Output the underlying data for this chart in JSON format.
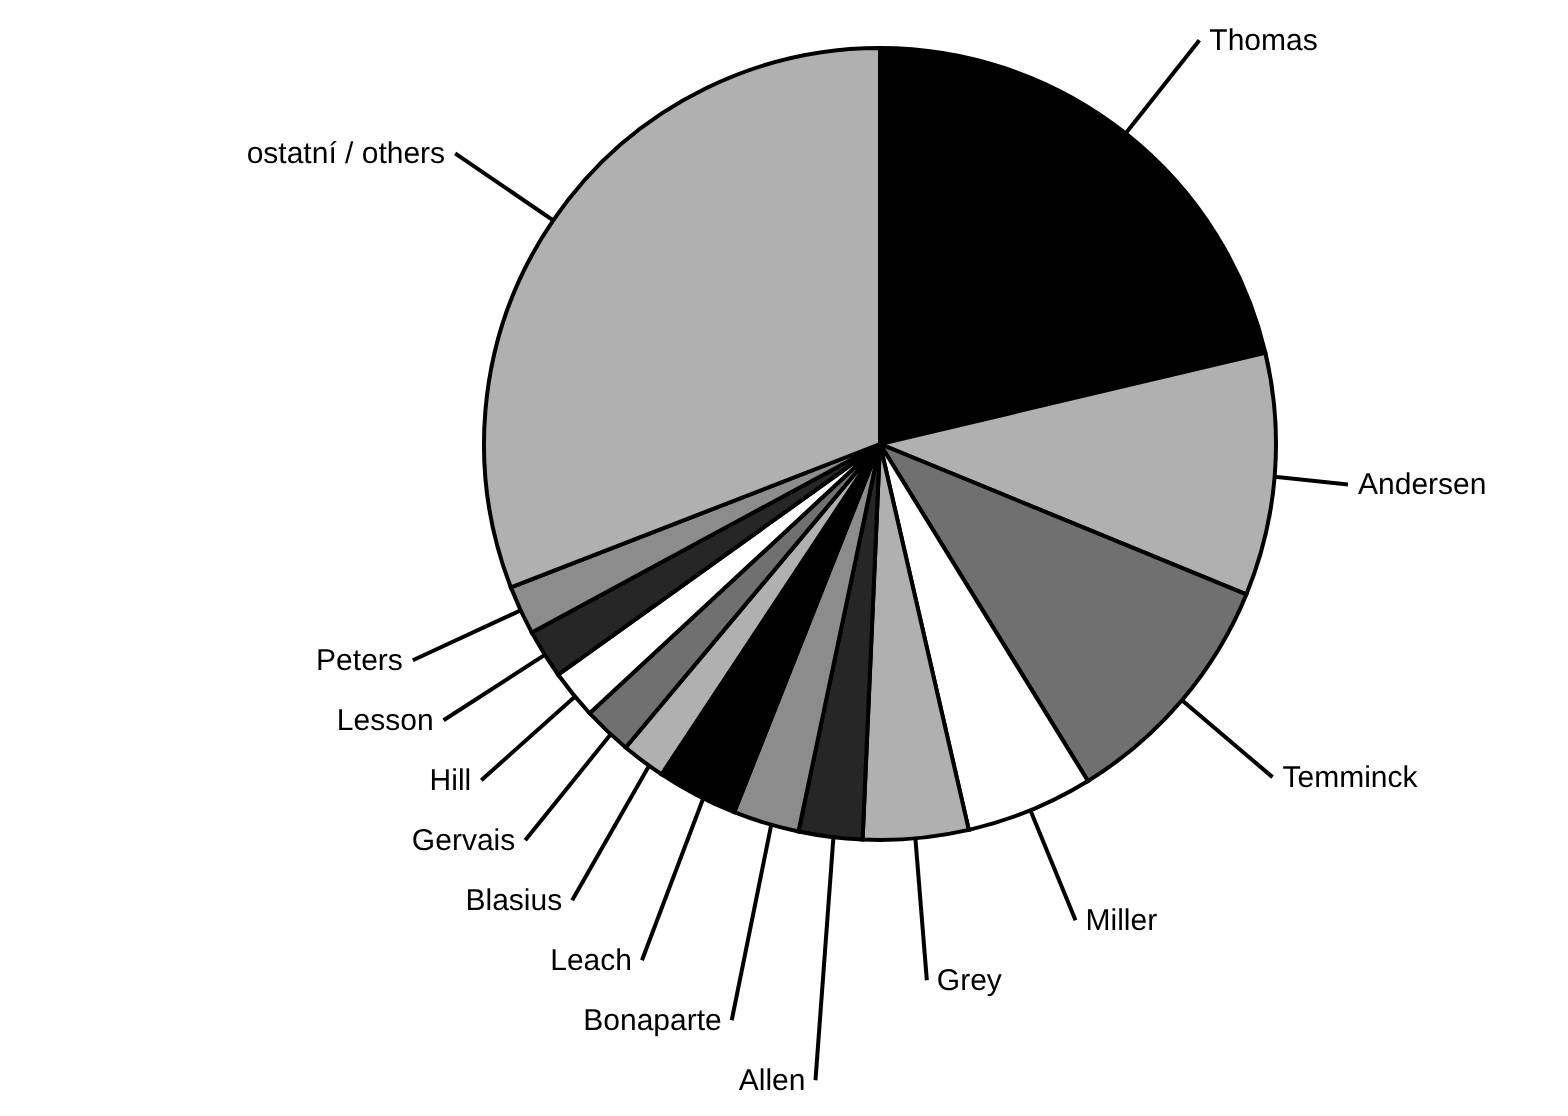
{
  "chart_data": {
    "type": "pie",
    "categories": [
      "Thomas",
      "Andersen",
      "Temminck",
      "Miller",
      "Grey",
      "Allen",
      "Bonaparte",
      "Leach",
      "Blasius",
      "Gervais",
      "Hill",
      "Lesson",
      "Peters",
      "ostatní / others"
    ],
    "values": [
      21.3,
      9.9,
      10.0,
      5.2,
      4.3,
      2.6,
      2.7,
      3.3,
      1.8,
      2.0,
      2.0,
      2.0,
      2.0,
      30.9
    ],
    "colors": [
      "#000000",
      "#b0b0b0",
      "#707070",
      "#ffffff",
      "#b0b0b0",
      "#262626",
      "#8c8c8c",
      "#000000",
      "#b0b0b0",
      "#707070",
      "#ffffff",
      "#262626",
      "#8c8c8c",
      "#b0b0b0"
    ]
  }
}
